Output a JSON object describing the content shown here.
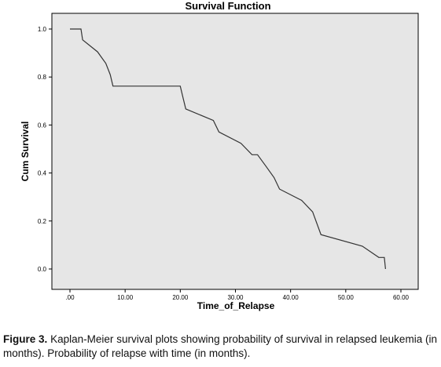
{
  "caption": {
    "label": "Figure 3.",
    "text": "Kaplan-Meier survival plots showing probability of survival in relapsed leukemia (in months). Probability of relapse with time (in months)."
  },
  "chart_data": {
    "type": "line",
    "step": true,
    "title": "Survival Function",
    "xlabel": "Time_of_Relapse",
    "ylabel": "Cum Survival",
    "xlim": [
      0,
      60
    ],
    "ylim": [
      0,
      1.0
    ],
    "x_ticks": [
      0,
      10,
      20,
      30,
      40,
      50,
      60
    ],
    "x_tick_labels": [
      ".00",
      "10.00",
      "20.00",
      "30.00",
      "40.00",
      "50.00",
      "60.00"
    ],
    "y_ticks": [
      0,
      0.2,
      0.4,
      0.6,
      0.8,
      1.0
    ],
    "y_tick_labels": [
      "0.0",
      "0.2",
      "0.4",
      "0.6",
      "0.8",
      "1.0"
    ],
    "grid": false,
    "background_color": "#e6e6e6",
    "line_color": "#333333",
    "series": [
      {
        "x": [
          0,
          2,
          2.3,
          5,
          6.5,
          7.3,
          7.8,
          20,
          20.5,
          21,
          26,
          27,
          31,
          33,
          34,
          35.5,
          37,
          38,
          42,
          44,
          45.5,
          53,
          56,
          57,
          57.2
        ],
        "y": [
          1.0,
          1.0,
          0.955,
          0.905,
          0.857,
          0.81,
          0.762,
          0.762,
          0.714,
          0.667,
          0.619,
          0.571,
          0.524,
          0.476,
          0.476,
          0.429,
          0.381,
          0.333,
          0.286,
          0.238,
          0.143,
          0.095,
          0.048,
          0.048,
          0.0
        ]
      }
    ]
  }
}
